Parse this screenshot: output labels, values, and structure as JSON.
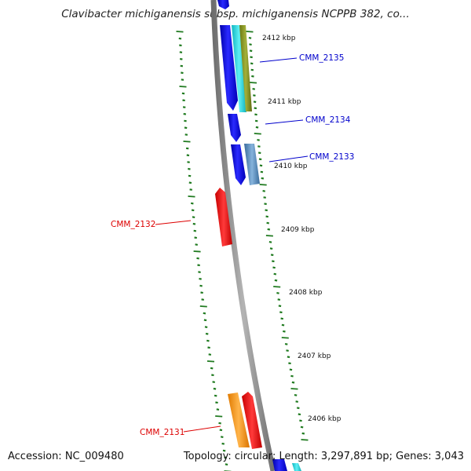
{
  "title": "Clavibacter michiganensis subsp. michiganensis NCPPB 382, co...",
  "footer": {
    "accession": "Accession: NC_009480",
    "summary": "Topology: circular; Length: 3,297,891 bp; Genes: 3,043"
  },
  "ticks": [
    "2412 kbp",
    "2411 kbp",
    "2410 kbp",
    "2409 kbp",
    "2408 kbp",
    "2407 kbp",
    "2406 kbp"
  ],
  "gene_labels": [
    {
      "text": "CMM_2135",
      "color": "#0000cc"
    },
    {
      "text": "CMM_2134",
      "color": "#0000cc"
    },
    {
      "text": "CMM_2133",
      "color": "#0000cc"
    },
    {
      "text": "CMM_2132",
      "color": "#dd0000"
    },
    {
      "text": "CMM_2131",
      "color": "#dd0000"
    }
  ],
  "colors": {
    "backbone": "#8a8a8a",
    "tick": "#1f7a1f",
    "forward_blue": "#1414e6",
    "cyan": "#22d6e0",
    "olive": "#7d8a1e",
    "steel": "#4f86b8",
    "red": "#ee1111",
    "orange": "#ff9a14"
  }
}
